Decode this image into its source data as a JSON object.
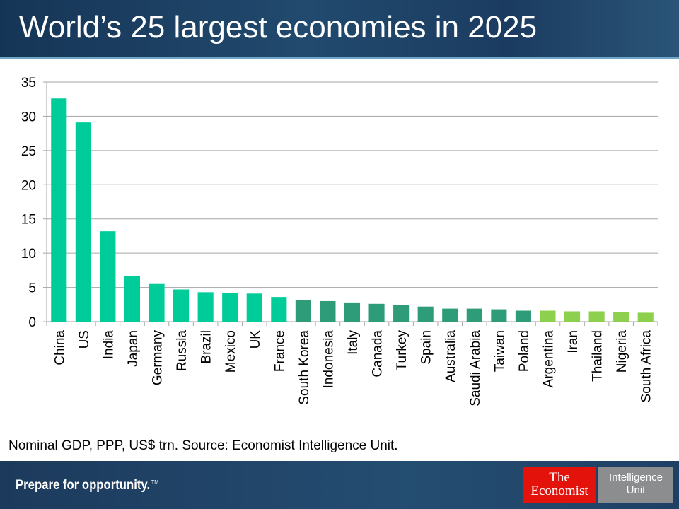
{
  "title": "World’s 25 largest economies in 2025",
  "footnote": "Nominal GDP, PPP, US$ trn. Source: Economist Intelligence Unit.",
  "footer": {
    "tagline": "Prepare for opportunity.",
    "trademark": "TM",
    "logo_economist": [
      "The",
      "Economist"
    ],
    "logo_eiu": [
      "Intelligence",
      "Unit"
    ]
  },
  "colors": {
    "tier1": "#00cc99",
    "tier2": "#2e9c78",
    "tier3": "#8dd04e",
    "header": "#1b3c60",
    "brand_red": "#e3120b"
  },
  "chart_data": {
    "type": "bar",
    "title": "",
    "xlabel": "",
    "ylabel": "",
    "ylim": [
      0,
      35
    ],
    "yticks": [
      0,
      5,
      10,
      15,
      20,
      25,
      30,
      35
    ],
    "grid": true,
    "categories": [
      "China",
      "US",
      "India",
      "Japan",
      "Germany",
      "Russia",
      "Brazil",
      "Mexico",
      "UK",
      "France",
      "South Korea",
      "Indonesia",
      "Italy",
      "Canada",
      "Turkey",
      "Spain",
      "Australia",
      "Saudi Arabia",
      "Taiwan",
      "Poland",
      "Argentina",
      "Iran",
      "Thailand",
      "Nigeria",
      "South Africa"
    ],
    "values": [
      32.6,
      29.1,
      13.2,
      6.7,
      5.5,
      4.7,
      4.3,
      4.2,
      4.1,
      3.6,
      3.2,
      3.0,
      2.8,
      2.6,
      2.4,
      2.2,
      1.9,
      1.9,
      1.8,
      1.6,
      1.6,
      1.5,
      1.5,
      1.4,
      1.3
    ],
    "tiers": [
      1,
      1,
      1,
      1,
      1,
      1,
      1,
      1,
      1,
      1,
      2,
      2,
      2,
      2,
      2,
      2,
      2,
      2,
      2,
      2,
      3,
      3,
      3,
      3,
      3
    ]
  }
}
